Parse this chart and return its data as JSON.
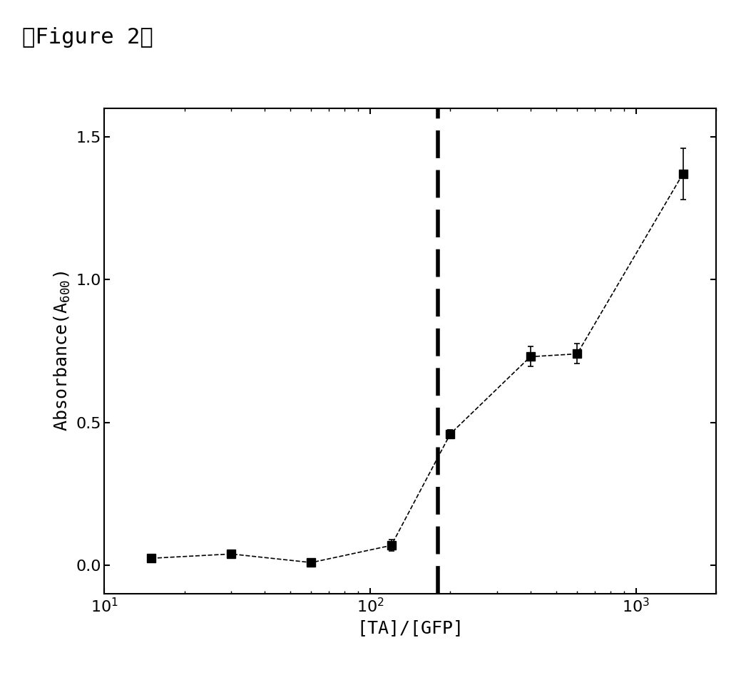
{
  "x": [
    15,
    30,
    60,
    120,
    200,
    400,
    600,
    1500
  ],
  "y": [
    0.025,
    0.04,
    0.01,
    0.07,
    0.46,
    0.73,
    0.74,
    1.37
  ],
  "yerr": [
    0.005,
    0.005,
    0.005,
    0.02,
    0.015,
    0.035,
    0.035,
    0.09
  ],
  "dashed_vline_x": 180,
  "xlim": [
    10,
    2000
  ],
  "ylim": [
    -0.1,
    1.6
  ],
  "yticks": [
    0.0,
    0.5,
    1.0,
    1.5
  ],
  "xlabel": "[TA]/[GFP]",
  "title": "【Figure 2】",
  "title_fontsize": 22,
  "axis_fontsize": 18,
  "tick_fontsize": 16,
  "marker": "s",
  "marker_size": 9,
  "line_color": "#000000",
  "marker_color": "#000000",
  "line_style": "--",
  "line_width": 1.2,
  "background_color": "#ffffff"
}
